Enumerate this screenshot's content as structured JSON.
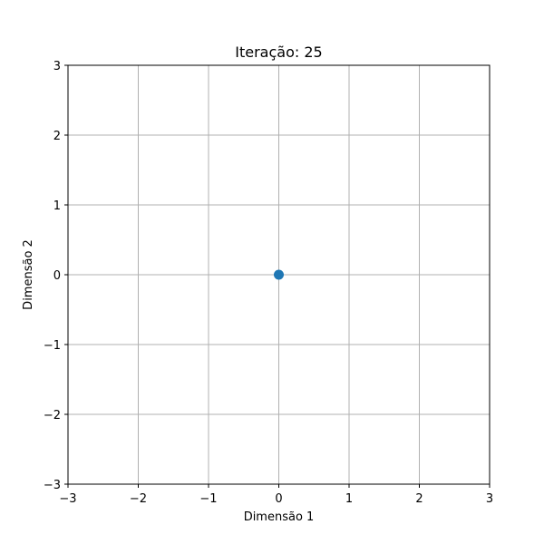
{
  "chart_data": {
    "type": "scatter",
    "title": "Iteração: 25",
    "xlabel": "Dimensão 1",
    "ylabel": "Dimensão 2",
    "xlim": [
      -3,
      3
    ],
    "ylim": [
      -3,
      3
    ],
    "x_ticks": [
      -3,
      -2,
      -1,
      0,
      1,
      2,
      3
    ],
    "y_ticks": [
      -3,
      -2,
      -1,
      0,
      1,
      2,
      3
    ],
    "x_tick_labels": [
      "−3",
      "−2",
      "−1",
      "0",
      "1",
      "2",
      "3"
    ],
    "y_tick_labels": [
      "−3",
      "−2",
      "−1",
      "0",
      "1",
      "2",
      "3"
    ],
    "grid": true,
    "series": [
      {
        "points": [
          {
            "x": 0,
            "y": 0
          }
        ],
        "color": "#1f77b4"
      }
    ],
    "colors": {
      "grid": "#b0b0b0",
      "axes": "#000000",
      "background": "#ffffff"
    }
  }
}
